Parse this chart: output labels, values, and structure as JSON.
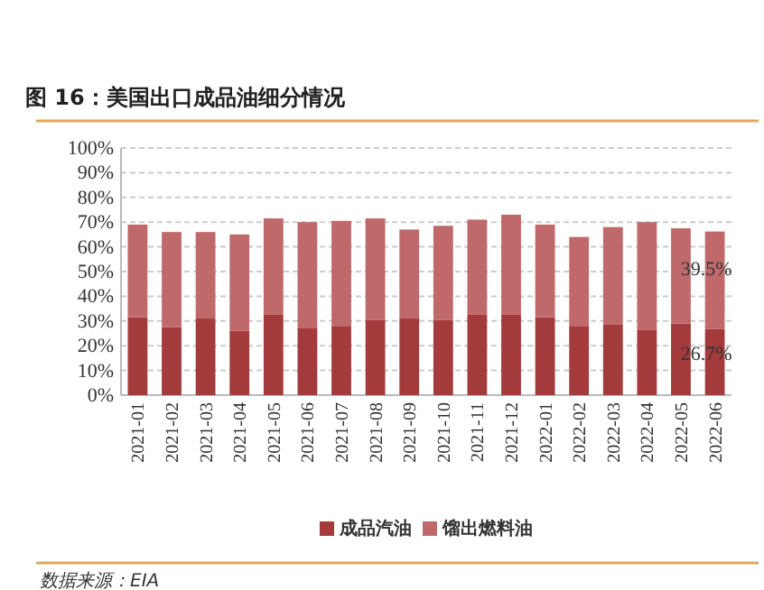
{
  "chart_data": {
    "type": "bar",
    "title": "图 16：美国出口成品油细分情况",
    "stacked": true,
    "categories": [
      "2021-01",
      "2021-02",
      "2021-03",
      "2021-04",
      "2021-05",
      "2021-06",
      "2021-07",
      "2021-08",
      "2021-09",
      "2021-10",
      "2021-11",
      "2021-12",
      "2022-01",
      "2022-02",
      "2022-03",
      "2022-04",
      "2022-05",
      "2022-06"
    ],
    "series": [
      {
        "name": "成品汽油",
        "color": "#a33a3c",
        "values": [
          31.5,
          27.5,
          31,
          26,
          32.5,
          27,
          28,
          30.5,
          31,
          30.5,
          32.5,
          32.5,
          31.5,
          28,
          28.5,
          26.5,
          29,
          26.7
        ],
        "value_labels": [
          null,
          null,
          null,
          null,
          null,
          null,
          null,
          null,
          null,
          null,
          null,
          null,
          null,
          null,
          null,
          null,
          null,
          "26.7%"
        ]
      },
      {
        "name": "馏出燃料油",
        "color": "#c0696b",
        "values": [
          37.5,
          38.5,
          35,
          39,
          39,
          43,
          42.5,
          41,
          36,
          38,
          38.5,
          40.5,
          37.5,
          36,
          39.5,
          43.5,
          38.5,
          39.5
        ],
        "value_labels": [
          null,
          null,
          null,
          null,
          null,
          null,
          null,
          null,
          null,
          null,
          null,
          null,
          null,
          null,
          null,
          null,
          null,
          "39.5%"
        ]
      }
    ],
    "ylim": [
      0,
      100
    ],
    "yticks": [
      {
        "value": 0,
        "label": "0%"
      },
      {
        "value": 10,
        "label": "10%"
      },
      {
        "value": 20,
        "label": "20%"
      },
      {
        "value": 30,
        "label": "30%"
      },
      {
        "value": 40,
        "label": "40%"
      },
      {
        "value": 50,
        "label": "50%"
      },
      {
        "value": 60,
        "label": "60%"
      },
      {
        "value": 70,
        "label": "70%"
      },
      {
        "value": 80,
        "label": "80%"
      },
      {
        "value": 90,
        "label": "90%"
      },
      {
        "value": 100,
        "label": "100%"
      }
    ],
    "grid": "y",
    "legend": "bottom",
    "annotations": [
      "数据来源：EIA"
    ]
  }
}
